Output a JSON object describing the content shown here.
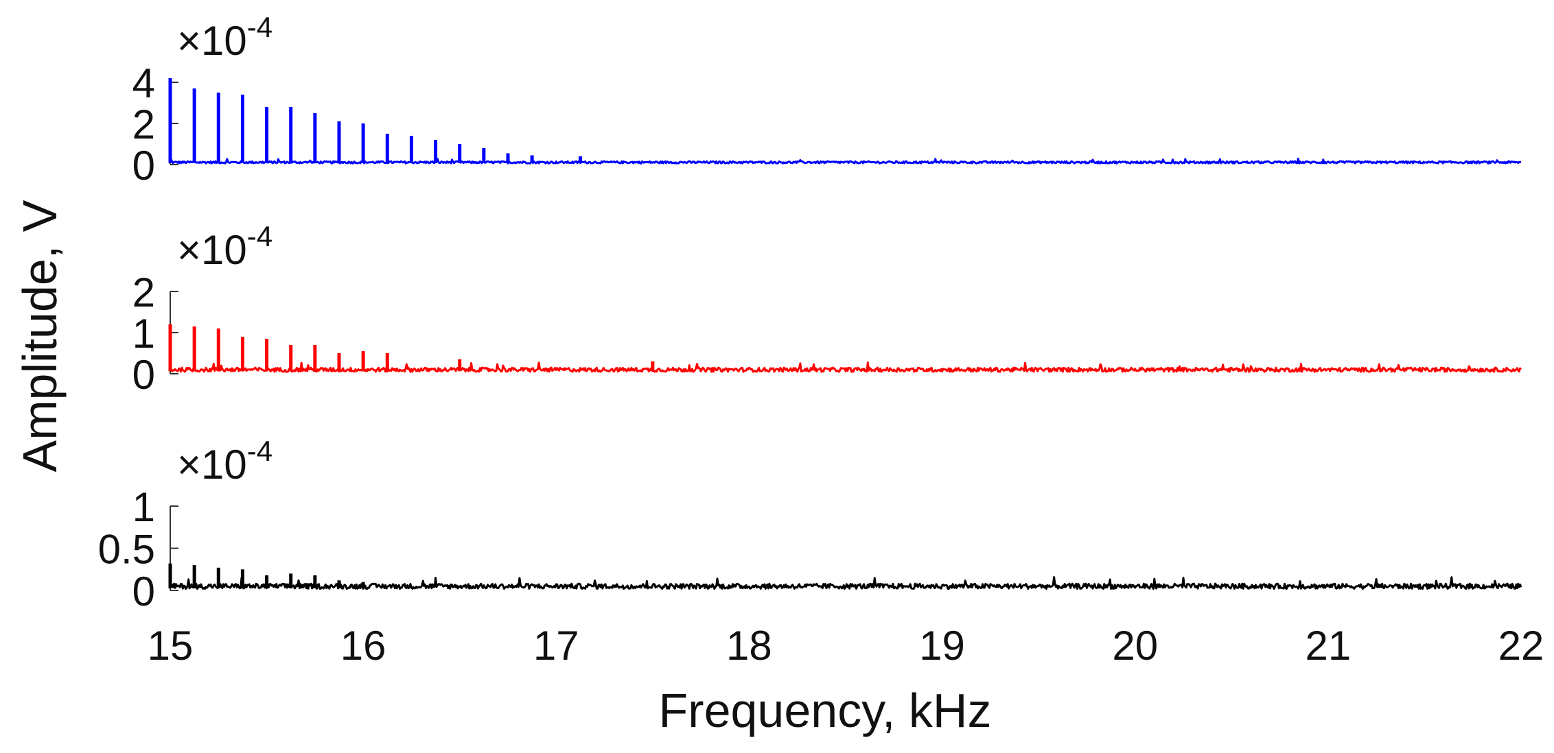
{
  "chart_data": {
    "type": "line",
    "xlabel": "Frequency, kHz",
    "ylabel": "Amplitude, V",
    "xlim": [
      15,
      22
    ],
    "x_ticks": [
      15,
      16,
      17,
      18,
      19,
      20,
      21,
      22
    ],
    "grid": false,
    "subplots": [
      {
        "color": "#0000ff",
        "ylim": [
          0,
          4
        ],
        "y_ticks": [
          {
            "value": 0,
            "label": "0"
          },
          {
            "value": 2,
            "label": "2"
          },
          {
            "value": 4,
            "label": "4"
          }
        ],
        "exponent": {
          "base": "×10",
          "power": "-4"
        },
        "baseline": 0.15,
        "noise": 0.1,
        "peaks": [
          {
            "x": 15.0,
            "y": 4.2
          },
          {
            "x": 15.125,
            "y": 3.7
          },
          {
            "x": 15.25,
            "y": 3.5
          },
          {
            "x": 15.375,
            "y": 3.4
          },
          {
            "x": 15.5,
            "y": 2.8
          },
          {
            "x": 15.625,
            "y": 2.8
          },
          {
            "x": 15.75,
            "y": 2.5
          },
          {
            "x": 15.875,
            "y": 2.1
          },
          {
            "x": 16.0,
            "y": 2.0
          },
          {
            "x": 16.125,
            "y": 1.5
          },
          {
            "x": 16.25,
            "y": 1.4
          },
          {
            "x": 16.375,
            "y": 1.2
          },
          {
            "x": 16.5,
            "y": 1.0
          },
          {
            "x": 16.625,
            "y": 0.8
          },
          {
            "x": 16.75,
            "y": 0.55
          },
          {
            "x": 16.875,
            "y": 0.45
          },
          {
            "x": 17.125,
            "y": 0.4
          }
        ]
      },
      {
        "color": "#ff0000",
        "ylim": [
          0,
          2
        ],
        "y_ticks": [
          {
            "value": 0,
            "label": "0"
          },
          {
            "value": 1,
            "label": "1"
          },
          {
            "value": 2,
            "label": "2"
          }
        ],
        "exponent": {
          "base": "×10",
          "power": "-4"
        },
        "baseline": 0.12,
        "noise": 0.1,
        "peaks": [
          {
            "x": 15.0,
            "y": 1.2
          },
          {
            "x": 15.125,
            "y": 1.15
          },
          {
            "x": 15.25,
            "y": 1.1
          },
          {
            "x": 15.375,
            "y": 0.9
          },
          {
            "x": 15.5,
            "y": 0.85
          },
          {
            "x": 15.625,
            "y": 0.7
          },
          {
            "x": 15.75,
            "y": 0.7
          },
          {
            "x": 15.875,
            "y": 0.5
          },
          {
            "x": 16.0,
            "y": 0.55
          },
          {
            "x": 16.125,
            "y": 0.5
          },
          {
            "x": 16.5,
            "y": 0.35
          },
          {
            "x": 17.5,
            "y": 0.3
          }
        ]
      },
      {
        "color": "#000000",
        "ylim": [
          0,
          1
        ],
        "y_ticks": [
          {
            "value": 0,
            "label": "0"
          },
          {
            "value": 0.5,
            "label": "0.5"
          },
          {
            "value": 1,
            "label": "1"
          }
        ],
        "exponent": {
          "base": "×10",
          "power": "-4"
        },
        "baseline": 0.05,
        "noise": 0.06,
        "peaks": [
          {
            "x": 15.0,
            "y": 0.32
          },
          {
            "x": 15.125,
            "y": 0.3
          },
          {
            "x": 15.25,
            "y": 0.27
          },
          {
            "x": 15.375,
            "y": 0.25
          },
          {
            "x": 15.5,
            "y": 0.18
          },
          {
            "x": 15.625,
            "y": 0.2
          },
          {
            "x": 15.75,
            "y": 0.18
          },
          {
            "x": 15.875,
            "y": 0.12
          },
          {
            "x": 16.0,
            "y": 0.1
          }
        ]
      }
    ]
  }
}
